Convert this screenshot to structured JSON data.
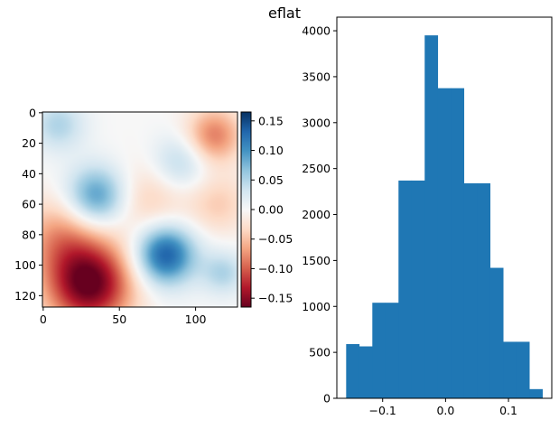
{
  "figure": {
    "title": "eflat"
  },
  "chart_data": [
    {
      "type": "heatmap",
      "colormap": "RdBu",
      "grid_size": [
        128,
        128
      ],
      "xlim": [
        0,
        127
      ],
      "ylim": [
        127,
        0
      ],
      "xticks": [
        0,
        50,
        100
      ],
      "yticks": [
        0,
        20,
        40,
        60,
        80,
        100,
        120
      ],
      "vmin": -0.165,
      "vmax": 0.165,
      "blobs": [
        {
          "x": 30,
          "y": 112,
          "value": -0.17,
          "radius": 20
        },
        {
          "x": 80,
          "y": 93,
          "value": 0.14,
          "radius": 14
        },
        {
          "x": 35,
          "y": 55,
          "value": 0.1,
          "radius": 14
        },
        {
          "x": 112,
          "y": 15,
          "value": -0.085,
          "radius": 13
        },
        {
          "x": 90,
          "y": 33,
          "value": 0.05,
          "radius": 13
        },
        {
          "x": 10,
          "y": 80,
          "value": -0.06,
          "radius": 18
        },
        {
          "x": 70,
          "y": 58,
          "value": -0.04,
          "radius": 18
        },
        {
          "x": 115,
          "y": 60,
          "value": -0.04,
          "radius": 14
        },
        {
          "x": 10,
          "y": 8,
          "value": 0.05,
          "radius": 12
        },
        {
          "x": 118,
          "y": 105,
          "value": 0.05,
          "radius": 10
        }
      ],
      "colorbar": {
        "ticks": [
          0.15,
          0.1,
          0.05,
          0.0,
          -0.05,
          -0.1,
          -0.15
        ],
        "tick_labels": [
          "0.15",
          "0.10",
          "0.05",
          "0.00",
          "−0.05",
          "−0.10",
          "−0.15"
        ]
      }
    },
    {
      "type": "bar",
      "subtype": "histogram",
      "bin_edges": [
        -0.158,
        -0.1372,
        -0.1164,
        -0.0956,
        -0.0748,
        -0.054,
        -0.0332,
        -0.0124,
        0.0084,
        0.0292,
        0.05,
        0.0708,
        0.0916,
        0.1124,
        0.1332,
        0.154
      ],
      "values": [
        590,
        565,
        1040,
        1040,
        2370,
        2370,
        3950,
        3375,
        3375,
        2340,
        2340,
        1420,
        615,
        615,
        100
      ],
      "color": "#1f77b4",
      "xlim": [
        -0.1728,
        0.1688
      ],
      "ylim": [
        0,
        4148
      ],
      "xticks": [
        -0.1,
        0.0,
        0.1
      ],
      "xtick_labels": [
        "−0.1",
        "0.0",
        "0.1"
      ],
      "yticks": [
        0,
        500,
        1000,
        1500,
        2000,
        2500,
        3000,
        3500,
        4000
      ],
      "ytick_labels": [
        "0",
        "500",
        "1000",
        "1500",
        "2000",
        "2500",
        "3000",
        "3500",
        "4000"
      ]
    }
  ]
}
